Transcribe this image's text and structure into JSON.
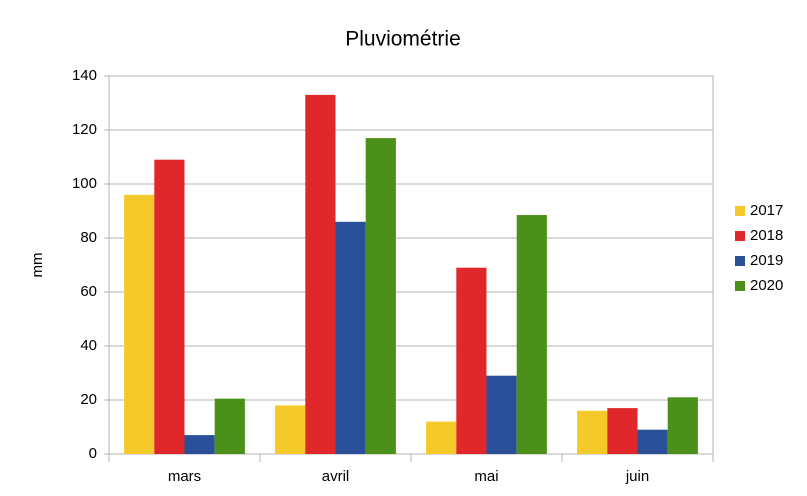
{
  "chart_data": {
    "type": "bar",
    "title": "Pluviométrie",
    "y_label": "mm",
    "categories": [
      "mars",
      "avril",
      "mai",
      "juin"
    ],
    "series": [
      {
        "name": "2017",
        "color": "#f6c92a",
        "values": [
          96,
          18,
          12,
          16
        ]
      },
      {
        "name": "2018",
        "color": "#e0282b",
        "values": [
          109,
          133,
          69,
          17
        ]
      },
      {
        "name": "2019",
        "color": "#2a5099",
        "values": [
          7,
          86,
          29,
          9
        ]
      },
      {
        "name": "2020",
        "color": "#4b9119",
        "values": [
          20.5,
          117,
          88.5,
          21
        ]
      }
    ],
    "ylim": [
      0,
      140
    ],
    "yticks": [
      0,
      20,
      40,
      60,
      80,
      100,
      120,
      140
    ],
    "grid": true,
    "legend": "right"
  }
}
